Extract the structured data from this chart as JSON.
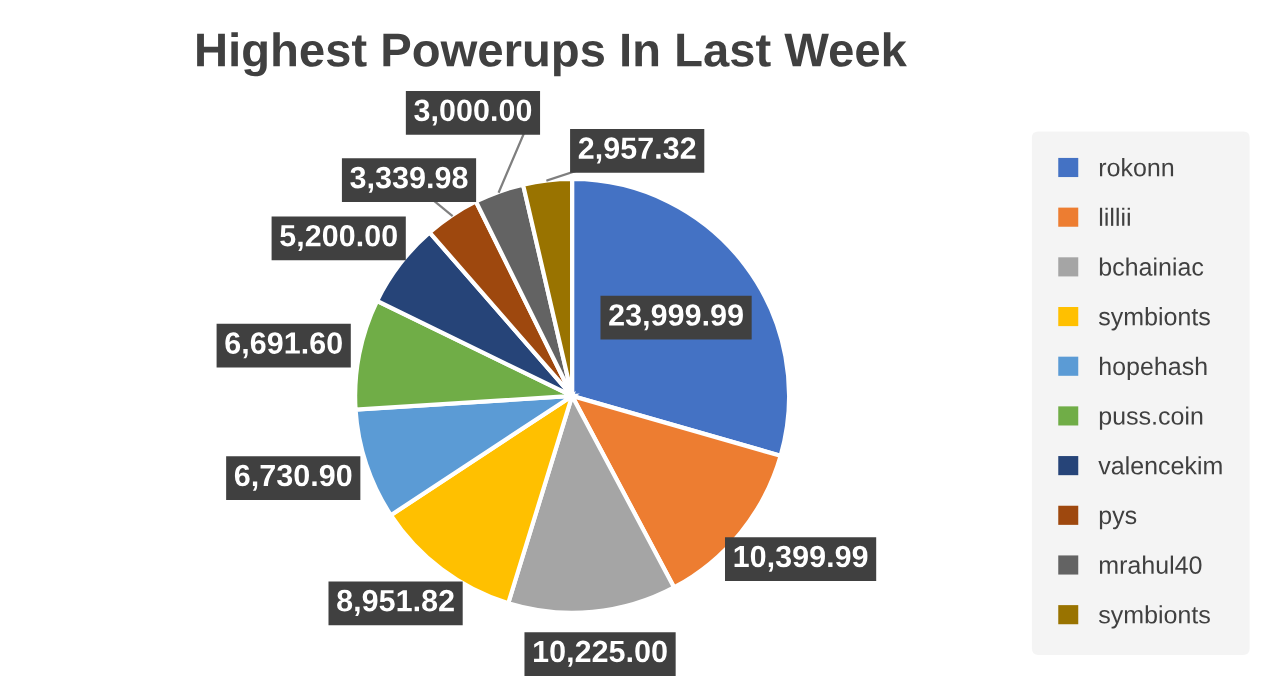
{
  "chart_data": {
    "type": "pie",
    "title": "Highest Powerups In Last Week",
    "categories": [
      "rokonn",
      "lillii",
      "bchainiac",
      "symbionts",
      "hopehash",
      "puss.coin",
      "valencekim",
      "pys",
      "mrahul40",
      "symbionts"
    ],
    "values": [
      23999.99,
      10399.99,
      10225.0,
      8951.82,
      6730.9,
      6691.6,
      5200.0,
      3339.98,
      3000.0,
      2957.32
    ],
    "value_labels": [
      "23,999.99",
      "10,399.99",
      "10,225.00",
      "8,951.82",
      "6,730.90",
      "6,691.60",
      "5,200.00",
      "3,339.98",
      "3,000.00",
      "2,957.32"
    ],
    "colors": [
      "#4472c4",
      "#ed7d31",
      "#a5a5a5",
      "#ffc000",
      "#5b9bd5",
      "#70ad47",
      "#264478",
      "#9e480e",
      "#636363",
      "#997300"
    ],
    "legend": "right"
  }
}
